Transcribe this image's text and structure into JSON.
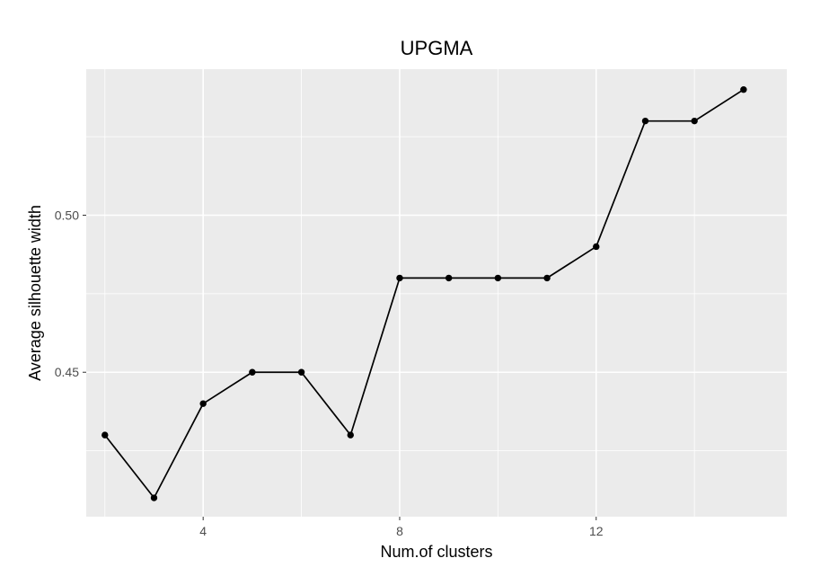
{
  "chart_data": {
    "type": "line",
    "title": "UPGMA",
    "xlabel": "Num.of clusters",
    "ylabel": "Average silhouette width",
    "x": [
      2,
      3,
      4,
      5,
      6,
      7,
      8,
      9,
      10,
      11,
      12,
      13,
      14,
      15
    ],
    "series": [
      {
        "values": [
          0.43,
          0.41,
          0.44,
          0.45,
          0.45,
          0.43,
          0.48,
          0.48,
          0.48,
          0.48,
          0.49,
          0.53,
          0.53,
          0.54
        ]
      }
    ],
    "x_ticks": [
      4,
      8,
      12
    ],
    "x_tick_labels": [
      "4",
      "8",
      "12"
    ],
    "y_ticks": [
      0.45,
      0.5
    ],
    "y_tick_labels": [
      "0.45",
      "0.50"
    ],
    "xlim": [
      1.62,
      15.88
    ],
    "ylim": [
      0.404,
      0.5465
    ],
    "grid": true,
    "colors": {
      "panel": "#ebebeb",
      "grid": "#ffffff",
      "line": "#000000",
      "point": "#000000"
    }
  }
}
